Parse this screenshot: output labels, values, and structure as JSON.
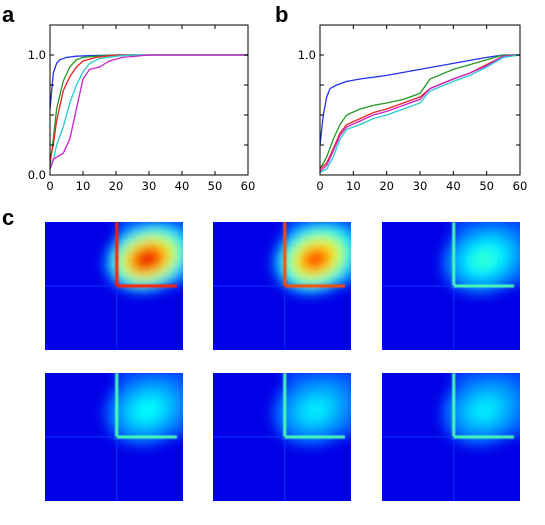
{
  "panel_labels": [
    "a",
    "b",
    "c"
  ],
  "colors": {
    "blue": "#2233ee",
    "green": "#229922",
    "red": "#ee2222",
    "cyan": "#22cccc",
    "magenta": "#cc22cc"
  },
  "chart_data": [
    {
      "id": "a",
      "type": "line",
      "xlim": [
        0,
        60
      ],
      "ylim": [
        0,
        1.25
      ],
      "xticks": [
        "0",
        "10",
        "20",
        "30",
        "40",
        "50",
        "60"
      ],
      "yticks": [
        "0.0",
        "1.0"
      ],
      "grid": false,
      "series": [
        {
          "color": "blue",
          "x": [
            0,
            1,
            2,
            3,
            5,
            8,
            12,
            20,
            30,
            60
          ],
          "y": [
            0.55,
            0.85,
            0.93,
            0.96,
            0.98,
            0.99,
            0.995,
            1.0,
            1.0,
            1.0
          ]
        },
        {
          "color": "green",
          "x": [
            0,
            1,
            2,
            4,
            6,
            8,
            10,
            14,
            20,
            30,
            60
          ],
          "y": [
            0.08,
            0.3,
            0.55,
            0.78,
            0.9,
            0.96,
            0.98,
            0.99,
            1.0,
            1.0,
            1.0
          ]
        },
        {
          "color": "red",
          "x": [
            0,
            1,
            2,
            4,
            6,
            8,
            10,
            14,
            20,
            30,
            60
          ],
          "y": [
            0.12,
            0.25,
            0.45,
            0.7,
            0.82,
            0.9,
            0.95,
            0.98,
            1.0,
            1.0,
            1.0
          ]
        },
        {
          "color": "cyan",
          "x": [
            0,
            1,
            2,
            4,
            6,
            8,
            10,
            12,
            15,
            20,
            25,
            30,
            60
          ],
          "y": [
            0.05,
            0.12,
            0.25,
            0.4,
            0.6,
            0.75,
            0.86,
            0.93,
            0.97,
            0.99,
            1.0,
            1.0,
            1.0
          ]
        },
        {
          "color": "magenta",
          "x": [
            0,
            1,
            2,
            4,
            6,
            8,
            10,
            12,
            15,
            18,
            22,
            30,
            60
          ],
          "y": [
            0.05,
            0.13,
            0.15,
            0.18,
            0.3,
            0.55,
            0.8,
            0.88,
            0.9,
            0.95,
            0.98,
            1.0,
            1.0
          ]
        }
      ]
    },
    {
      "id": "b",
      "type": "line",
      "xlim": [
        0,
        60
      ],
      "ylim": [
        0,
        1.25
      ],
      "xticks": [
        "0",
        "10",
        "20",
        "30",
        "40",
        "50",
        "60"
      ],
      "yticks": [
        "1.0"
      ],
      "grid": false,
      "series": [
        {
          "color": "blue",
          "x": [
            0,
            1,
            2,
            3,
            5,
            8,
            12,
            20,
            30,
            40,
            50,
            55,
            60
          ],
          "y": [
            0.25,
            0.5,
            0.65,
            0.72,
            0.75,
            0.78,
            0.8,
            0.83,
            0.88,
            0.93,
            0.98,
            1.0,
            1.0
          ]
        },
        {
          "color": "green",
          "x": [
            0,
            2,
            4,
            6,
            8,
            12,
            16,
            20,
            25,
            30,
            33,
            40,
            45,
            50,
            55,
            60
          ],
          "y": [
            0.05,
            0.15,
            0.3,
            0.42,
            0.5,
            0.55,
            0.58,
            0.6,
            0.63,
            0.68,
            0.8,
            0.88,
            0.92,
            0.96,
            1.0,
            1.0
          ]
        },
        {
          "color": "red",
          "x": [
            0,
            2,
            4,
            6,
            8,
            12,
            16,
            20,
            25,
            30,
            33,
            40,
            45,
            50,
            55,
            60
          ],
          "y": [
            0.05,
            0.1,
            0.22,
            0.35,
            0.42,
            0.47,
            0.52,
            0.55,
            0.6,
            0.65,
            0.72,
            0.8,
            0.85,
            0.92,
            0.99,
            1.0
          ]
        },
        {
          "color": "magenta",
          "x": [
            0,
            2,
            4,
            6,
            8,
            12,
            16,
            20,
            25,
            30,
            33,
            40,
            45,
            50,
            55,
            60
          ],
          "y": [
            0.03,
            0.08,
            0.2,
            0.33,
            0.4,
            0.45,
            0.5,
            0.53,
            0.58,
            0.63,
            0.72,
            0.8,
            0.85,
            0.91,
            0.99,
            1.0
          ]
        },
        {
          "color": "cyan",
          "x": [
            0,
            2,
            4,
            6,
            8,
            12,
            16,
            20,
            25,
            30,
            33,
            40,
            45,
            50,
            55,
            60
          ],
          "y": [
            0.02,
            0.05,
            0.15,
            0.3,
            0.38,
            0.42,
            0.47,
            0.5,
            0.55,
            0.6,
            0.7,
            0.78,
            0.83,
            0.9,
            0.98,
            1.0
          ]
        }
      ]
    },
    {
      "id": "c",
      "type": "heatmap",
      "colormap": "jet",
      "layout": "2 rows x 3 columns",
      "maps": [
        {
          "peak": 0.9,
          "spread": 0.55,
          "cross_intensity": 0.85,
          "cross_color": "red"
        },
        {
          "peak": 0.82,
          "spread": 0.65,
          "cross_intensity": 0.8,
          "cross_color": "orange"
        },
        {
          "peak": 0.42,
          "spread": 0.65,
          "cross_intensity": 0.45,
          "cross_color": "cyan"
        },
        {
          "peak": 0.38,
          "spread": 0.65,
          "cross_intensity": 0.45,
          "cross_color": "cyan"
        },
        {
          "peak": 0.36,
          "spread": 0.65,
          "cross_intensity": 0.45,
          "cross_color": "cyan"
        },
        {
          "peak": 0.36,
          "spread": 0.65,
          "cross_intensity": 0.45,
          "cross_color": "cyan"
        }
      ]
    }
  ]
}
